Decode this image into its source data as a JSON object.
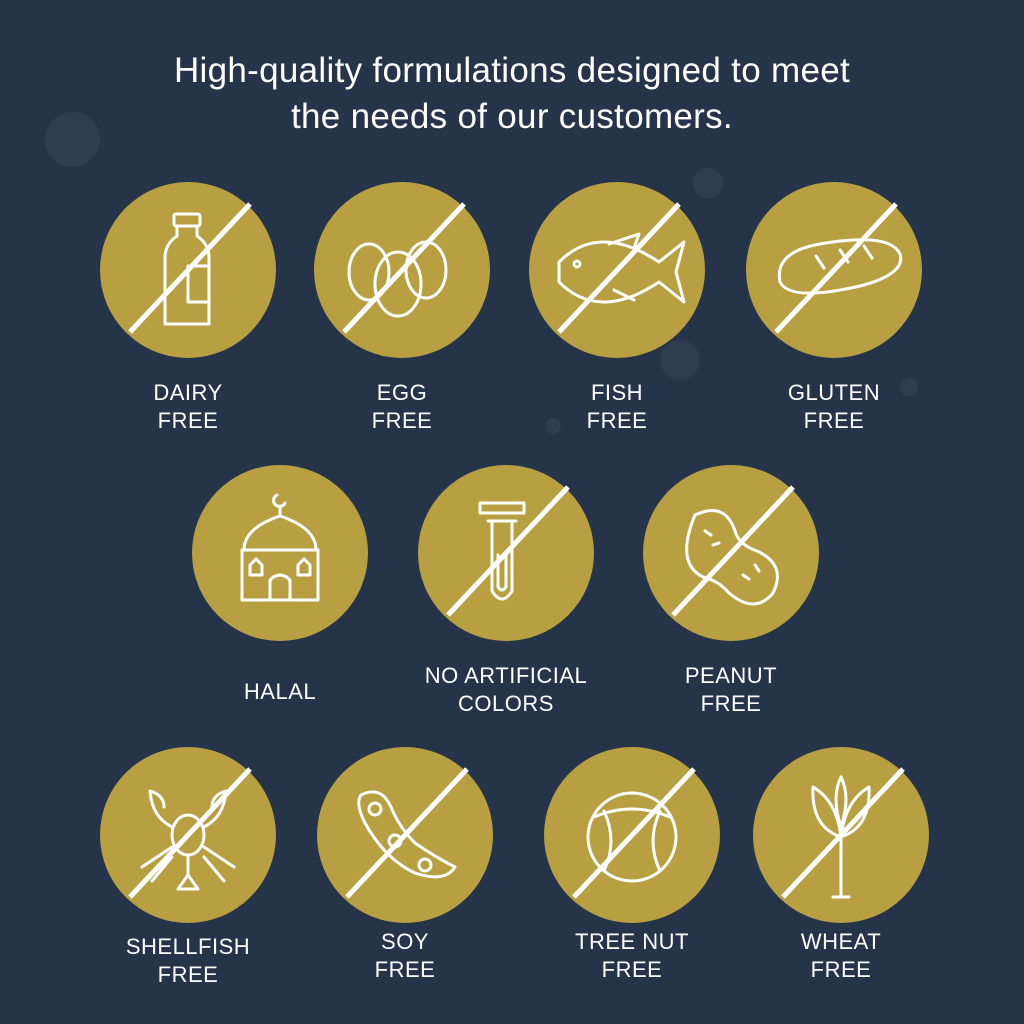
{
  "headline": "High-quality formulations designed to meet the needs of our customers.",
  "headline_lines": [
    "High-quality formulations designed to meet",
    "the needs of our customers."
  ],
  "colors": {
    "background": "#263449",
    "badge": "#b8a042",
    "line": "#ffffff"
  },
  "badges": [
    {
      "icon": "milk-bottle-icon",
      "line1": "DAIRY",
      "line2": "FREE",
      "crossed": true
    },
    {
      "icon": "eggs-icon",
      "line1": "EGG",
      "line2": "FREE",
      "crossed": true
    },
    {
      "icon": "fish-icon",
      "line1": "FISH",
      "line2": "FREE",
      "crossed": true
    },
    {
      "icon": "bread-icon",
      "line1": "GLUTEN",
      "line2": "FREE",
      "crossed": true
    },
    {
      "icon": "mosque-icon",
      "line1": "HALAL",
      "line2": "",
      "crossed": false
    },
    {
      "icon": "test-tube-icon",
      "line1": "NO ARTIFICIAL",
      "line2": "COLORS",
      "crossed": true
    },
    {
      "icon": "peanut-icon",
      "line1": "PEANUT",
      "line2": "FREE",
      "crossed": true
    },
    {
      "icon": "lobster-icon",
      "line1": "SHELLFISH",
      "line2": "FREE",
      "crossed": true
    },
    {
      "icon": "soybean-icon",
      "line1": "SOY",
      "line2": "FREE",
      "crossed": true
    },
    {
      "icon": "hazelnut-icon",
      "line1": "TREE NUT",
      "line2": "FREE",
      "crossed": true
    },
    {
      "icon": "wheat-icon",
      "line1": "WHEAT",
      "line2": "FREE",
      "crossed": true
    }
  ]
}
